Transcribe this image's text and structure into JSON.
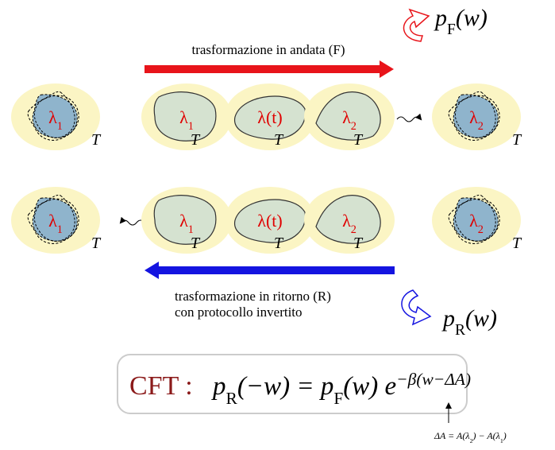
{
  "forward_transformation": {
    "label": "trasformazione in andata (F)"
  },
  "forward_distribution": [
    {
      "text": "p"
    },
    {
      "sub": "F"
    },
    {
      "text": "(w)"
    }
  ],
  "rows": [
    {
      "states": [
        {
          "symbol": [
            {
              "text": "λ"
            },
            {
              "sub": "1"
            }
          ],
          "temperature": "T"
        },
        {
          "symbol": [
            {
              "text": "λ"
            },
            {
              "sub": "1"
            }
          ],
          "temperature": "T"
        },
        {
          "symbol": [
            {
              "text": "λ(t)"
            }
          ],
          "temperature": "T"
        },
        {
          "symbol": [
            {
              "text": "λ"
            },
            {
              "sub": "2"
            }
          ],
          "temperature": "T"
        },
        {
          "symbol": [
            {
              "text": "λ"
            },
            {
              "sub": "2"
            }
          ],
          "temperature": "T"
        }
      ]
    },
    {
      "states": [
        {
          "symbol": [
            {
              "text": "λ"
            },
            {
              "sub": "1"
            }
          ],
          "temperature": "T"
        },
        {
          "symbol": [
            {
              "text": "λ"
            },
            {
              "sub": "1"
            }
          ],
          "temperature": "T"
        },
        {
          "symbol": [
            {
              "text": "λ(t)"
            }
          ],
          "temperature": "T"
        },
        {
          "symbol": [
            {
              "text": "λ"
            },
            {
              "sub": "2"
            }
          ],
          "temperature": "T"
        },
        {
          "symbol": [
            {
              "text": "λ"
            },
            {
              "sub": "2"
            }
          ],
          "temperature": "T"
        }
      ]
    }
  ],
  "reverse_transformation": {
    "lines": [
      "trasformazione in ritorno (R)",
      "con protocollo invertito"
    ]
  },
  "reverse_distribution": [
    {
      "text": "p"
    },
    {
      "sub": "R"
    },
    {
      "text": "(w)"
    }
  ],
  "theorem": {
    "name": "CFT :",
    "formula": [
      {
        "text": "p"
      },
      {
        "sub": "R"
      },
      {
        "text": "(−w) = "
      },
      {
        "text": "p"
      },
      {
        "sub": "F"
      },
      {
        "text": "(w) e"
      },
      {
        "sup": "−β(w−ΔA)"
      }
    ],
    "annotation": [
      {
        "text": "ΔA = A(λ"
      },
      {
        "sub": "2"
      },
      {
        "text": ") − A(λ"
      },
      {
        "sub": "1"
      },
      {
        "text": ")"
      }
    ]
  }
}
